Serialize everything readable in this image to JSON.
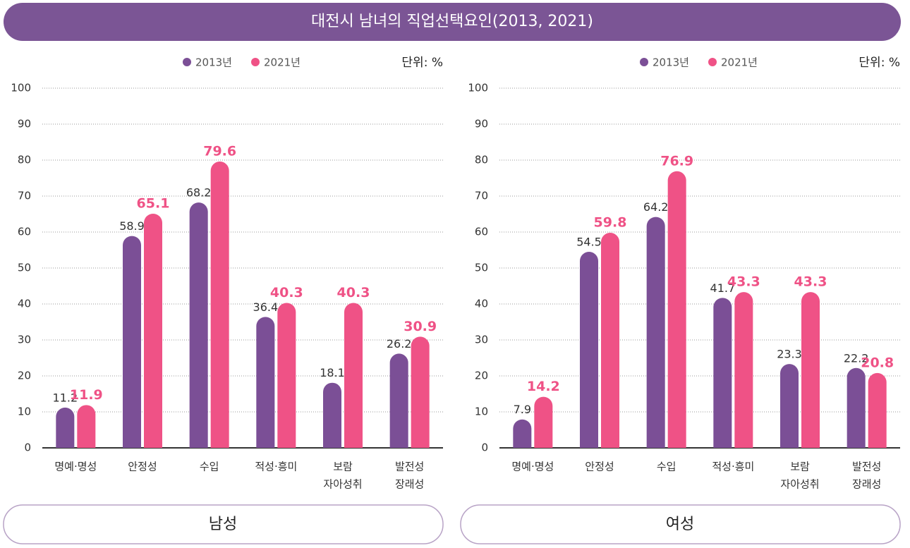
{
  "title": "대전시 남녀의 직업선택요인(2013, 2021)",
  "chart_data": [
    {
      "type": "bar",
      "label": "남성",
      "unit": "단위: %",
      "categories": [
        "명예·명성",
        "안정성",
        "수입",
        "적성·흥미",
        [
          "보람",
          "자아성취"
        ],
        [
          "발전성",
          "장래성"
        ]
      ],
      "series": [
        {
          "name": "2013년",
          "color": "#7b4f96",
          "values": [
            11.2,
            58.9,
            68.2,
            36.4,
            18.1,
            26.2
          ]
        },
        {
          "name": "2021년",
          "color": "#ef5286",
          "values": [
            11.9,
            65.1,
            79.6,
            40.3,
            40.3,
            30.9
          ]
        }
      ],
      "ylim": [
        0,
        100
      ],
      "yticks": [
        0,
        10,
        20,
        30,
        40,
        50,
        60,
        70,
        80,
        90,
        100
      ],
      "grid": true,
      "legend": "top"
    },
    {
      "type": "bar",
      "label": "여성",
      "unit": "단위: %",
      "categories": [
        "명예·명성",
        "안정성",
        "수입",
        "적성·흥미",
        [
          "보람",
          "자아성취"
        ],
        [
          "발전성",
          "장래성"
        ]
      ],
      "series": [
        {
          "name": "2013년",
          "color": "#7b4f96",
          "values": [
            7.9,
            54.5,
            64.2,
            41.7,
            23.3,
            22.2
          ]
        },
        {
          "name": "2021년",
          "color": "#ef5286",
          "values": [
            14.2,
            59.8,
            76.9,
            43.3,
            43.3,
            20.8
          ]
        }
      ],
      "ylim": [
        0,
        100
      ],
      "yticks": [
        0,
        10,
        20,
        30,
        40,
        50,
        60,
        70,
        80,
        90,
        100
      ],
      "grid": true,
      "legend": "top"
    }
  ]
}
